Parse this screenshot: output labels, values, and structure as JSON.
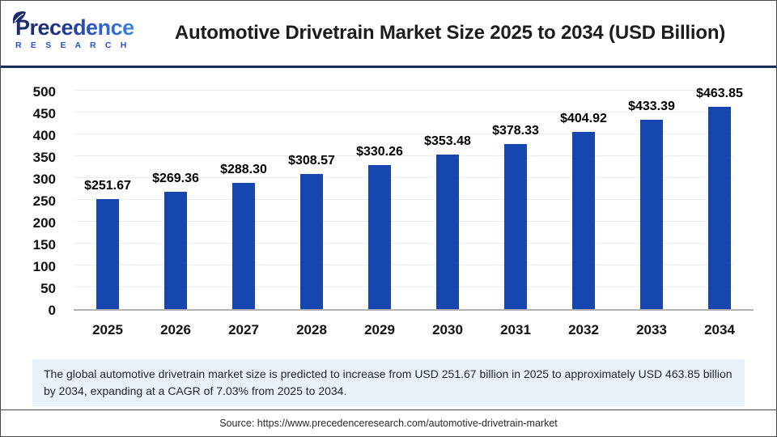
{
  "header": {
    "logo": {
      "line1": "Precedence",
      "line2": "R E S E A R C H"
    },
    "title": "Automotive Drivetrain Market Size 2025 to 2034 (USD Billion)"
  },
  "chart_data": {
    "type": "bar",
    "title": "Automotive Drivetrain Market Size 2025 to 2034 (USD Billion)",
    "categories": [
      "2025",
      "2026",
      "2027",
      "2028",
      "2029",
      "2030",
      "2031",
      "2032",
      "2033",
      "2034"
    ],
    "values": [
      251.67,
      269.36,
      288.3,
      308.57,
      330.26,
      353.48,
      378.33,
      404.92,
      433.39,
      463.85
    ],
    "labels": [
      "$251.67",
      "$269.36",
      "$288.30",
      "$308.57",
      "$330.26",
      "$353.48",
      "$378.33",
      "$404.92",
      "$433.39",
      "$463.85"
    ],
    "unit": "USD Billion",
    "xlabel": "",
    "ylabel": "",
    "ylim": [
      0,
      500
    ],
    "yticks": [
      0,
      50,
      100,
      150,
      200,
      250,
      300,
      350,
      400,
      450,
      500
    ],
    "grid": true,
    "legend": false,
    "bar_color": "#1646b0",
    "gridline_color": "#ececec",
    "axis_line_color": "#b3b3b3"
  },
  "summary": {
    "text": "The global automotive drivetrain market size is predicted to increase from USD 251.67 billion in 2025 to approximately USD 463.85 billion by 2034, expanding at a CAGR of 7.03% from 2025 to 2034."
  },
  "source": {
    "text": "Source: https://www.precedenceresearch.com/automotive-drivetrain-market"
  },
  "colors": {
    "header_rule": "#1b2a5e",
    "bar": "#1646b0",
    "summary_bg": "#e9f1fb",
    "logo_dark": "#1b2a6b",
    "logo_blue": "#2553c7"
  }
}
